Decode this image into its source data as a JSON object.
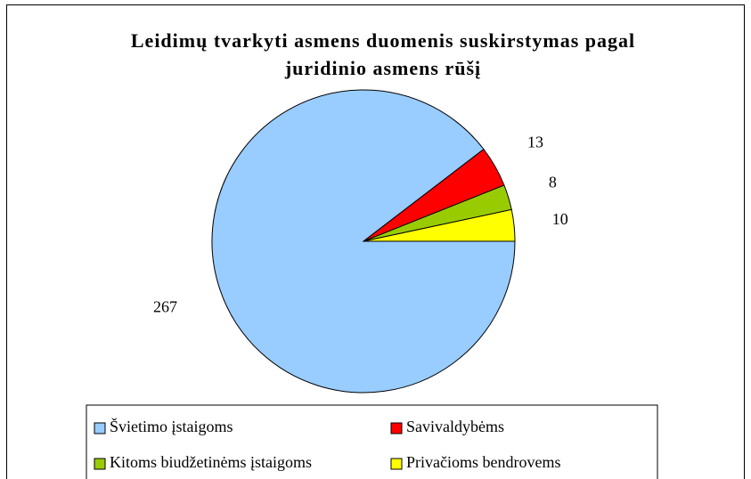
{
  "chart_data": {
    "type": "pie",
    "title": "Leidimų tvarkyti asmens duomenis suskirstymas pagal juridinio asmens rūšį",
    "categories": [
      "Švietimo įstaigoms",
      "Savivaldybėms",
      "Kitoms biudžetinėms įstaigoms",
      "Privačioms bendrovems"
    ],
    "values": [
      267,
      13,
      8,
      10
    ],
    "colors": [
      "#99ccff",
      "#ff0000",
      "#99cc00",
      "#ffff00"
    ],
    "legend": "bottom"
  }
}
